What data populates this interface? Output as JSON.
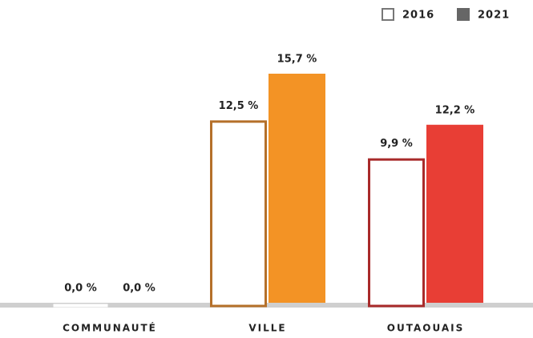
{
  "chart_data": {
    "type": "bar",
    "categories": [
      "COMMUNAUTÉ",
      "VILLE",
      "OUTAOUAIS"
    ],
    "series": [
      {
        "name": "2016",
        "style": "outline",
        "color": "#777777",
        "colors": [
          "#2f6fa8",
          "#b5702a",
          "#a82a2a"
        ],
        "values": [
          0,
          12.5,
          9.9
        ],
        "value_labels": [
          "0,0 %",
          "12,5 %",
          "9,9 %"
        ]
      },
      {
        "name": "2021",
        "style": "filled",
        "color": "#666666",
        "colors": [
          "#3b8ad0",
          "#f39325",
          "#e83e35"
        ],
        "values": [
          0,
          15.7,
          12.2
        ],
        "value_labels": [
          "0,0 %",
          "15,7 %",
          "12,2 %"
        ]
      }
    ],
    "legend": "top-right"
  }
}
